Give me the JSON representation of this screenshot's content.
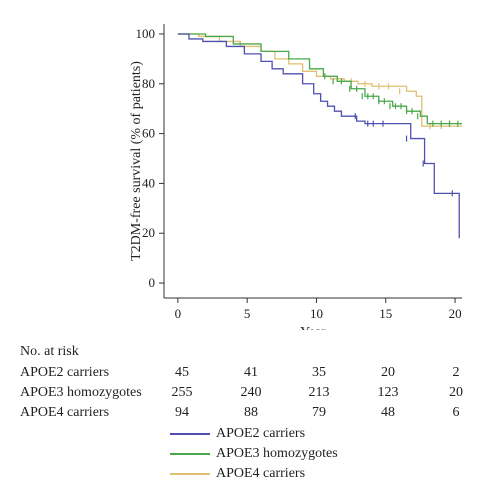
{
  "chart_data": {
    "type": "line",
    "step": true,
    "xlabel": "Year",
    "ylabel": "T2DM-free survival (% of patients)",
    "xlim": [
      -1,
      20.5
    ],
    "ylim": [
      -6,
      104
    ],
    "xticks": [
      0,
      5,
      10,
      15,
      20
    ],
    "yticks": [
      0,
      20,
      40,
      60,
      80,
      100
    ],
    "series": [
      {
        "name": "APOE2 carriers",
        "color": "#5050b0",
        "x": [
          0,
          0.8,
          1.8,
          3.5,
          4.8,
          6.0,
          6.8,
          7.6,
          9.0,
          9.8,
          10.3,
          10.8,
          11.3,
          11.8,
          12.3,
          12.9,
          13.5,
          16.2,
          16.8,
          17.8,
          18.5,
          19.8,
          20.3
        ],
        "y": [
          100,
          98,
          97,
          95,
          92,
          89,
          86,
          84,
          80,
          76,
          73,
          71,
          69,
          67,
          67,
          65,
          64,
          64,
          58,
          48,
          36,
          36,
          18
        ],
        "censor_x": [
          12.8,
          13.7,
          14.1,
          14.8,
          16.5,
          17.7,
          19.8
        ],
        "censor_y": [
          67,
          64,
          64,
          64,
          58,
          48,
          36
        ]
      },
      {
        "name": "APOE3 homozygotes",
        "color": "#4aa84a",
        "x": [
          0,
          2,
          4,
          6,
          8,
          9.5,
          10.5,
          11.5,
          12.5,
          13.5,
          14.5,
          15.5,
          16.5,
          17.5,
          18,
          20.5
        ],
        "y": [
          100,
          99,
          96,
          93,
          90,
          86,
          83,
          81,
          78,
          75,
          73,
          71,
          69,
          67,
          64,
          64
        ],
        "censor_x": [
          10.6,
          11.2,
          11.8,
          12.4,
          12.9,
          13.3,
          13.7,
          14.1,
          14.5,
          14.9,
          15.3,
          15.7,
          16.1,
          16.5,
          16.9,
          17.3,
          18.4,
          19.0,
          19.6,
          20.2
        ],
        "censor_y": [
          83,
          81,
          81,
          78,
          78,
          75,
          75,
          75,
          73,
          73,
          71,
          71,
          71,
          69,
          69,
          67,
          64,
          64,
          64,
          64
        ]
      },
      {
        "name": "APOE4 carriers",
        "color": "#e0c070",
        "x": [
          0,
          1.5,
          3,
          4.5,
          6,
          7,
          8,
          9,
          10,
          11,
          12,
          13,
          14,
          15.5,
          16.5,
          17.2,
          17.6,
          20.5
        ],
        "y": [
          100,
          99,
          97,
          95,
          93,
          90,
          88,
          85,
          83,
          82,
          81,
          80,
          79,
          79,
          77,
          75,
          63,
          63
        ],
        "censor_x": [
          12.5,
          13.5,
          14.5,
          15.2,
          16.0,
          18.2,
          19.0
        ],
        "censor_y": [
          81,
          80,
          79,
          79,
          77,
          63,
          63
        ]
      }
    ]
  },
  "risk_table": {
    "title": "No. at risk",
    "rows": [
      {
        "label": "APOE2 carriers",
        "values": [
          "45",
          "41",
          "35",
          "20",
          "2"
        ]
      },
      {
        "label": "APOE3 homozygotes",
        "values": [
          "255",
          "240",
          "213",
          "123",
          "20"
        ]
      },
      {
        "label": "APOE4 carriers",
        "values": [
          "94",
          "88",
          "79",
          "48",
          "6"
        ]
      }
    ]
  }
}
